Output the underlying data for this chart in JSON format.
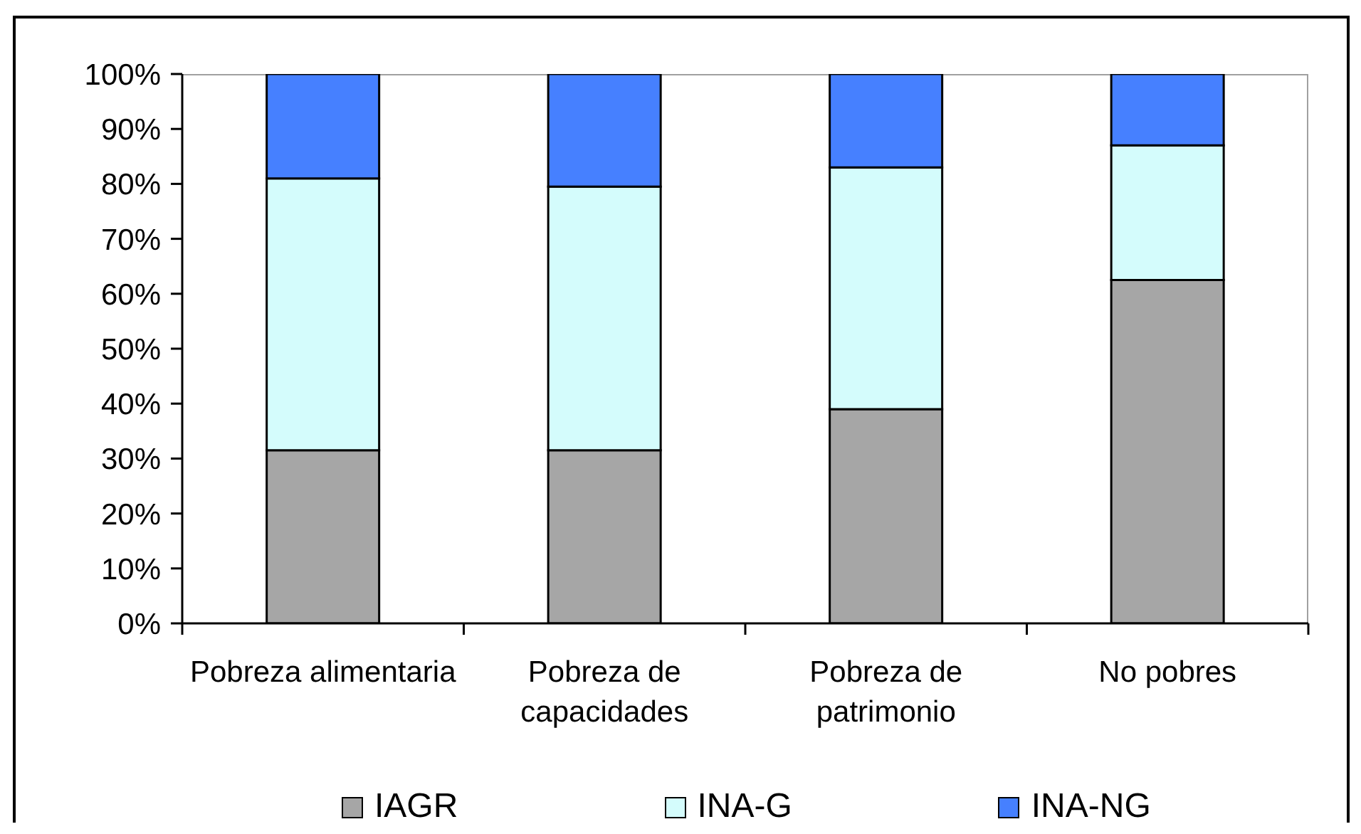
{
  "chart_data": {
    "type": "bar",
    "stacked": true,
    "categories": [
      "Pobreza alimentaria",
      "Pobreza de capacidades",
      "Pobreza de patrimonio",
      "No pobres"
    ],
    "series": [
      {
        "name": "IAGR",
        "color": "#a6a6a6",
        "values": [
          31.5,
          31.5,
          39,
          62.5
        ]
      },
      {
        "name": "INA-G",
        "color": "#d4fcfc",
        "values": [
          49.5,
          48,
          44,
          24.5
        ]
      },
      {
        "name": "INA-NG",
        "color": "#4680ff",
        "values": [
          19,
          20.5,
          17,
          13
        ]
      }
    ],
    "ylim": [
      0,
      100
    ],
    "yticks": [
      {
        "value": 0,
        "label": "0%"
      },
      {
        "value": 10,
        "label": "10%"
      },
      {
        "value": 20,
        "label": "20%"
      },
      {
        "value": 30,
        "label": "30%"
      },
      {
        "value": 40,
        "label": "40%"
      },
      {
        "value": 50,
        "label": "50%"
      },
      {
        "value": 60,
        "label": "60%"
      },
      {
        "value": 70,
        "label": "70%"
      },
      {
        "value": 80,
        "label": "80%"
      },
      {
        "value": 90,
        "label": "90%"
      },
      {
        "value": 100,
        "label": "100%"
      }
    ],
    "legend": "bottom"
  }
}
